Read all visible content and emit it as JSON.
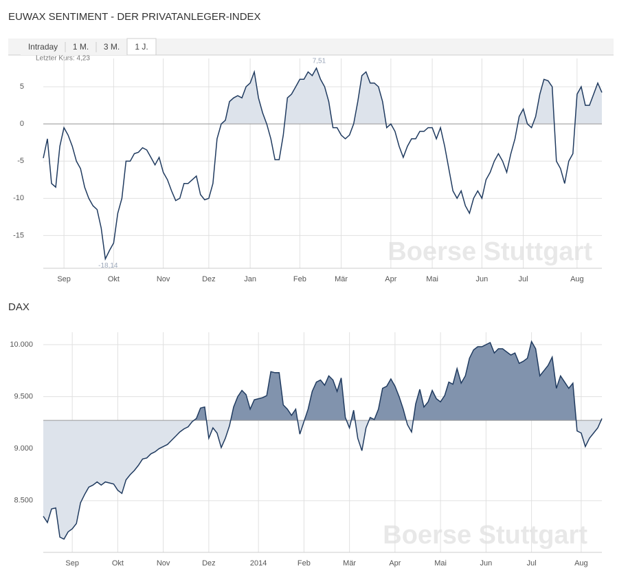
{
  "title": "EUWAX SENTIMENT - DER PRIVATANLEGER-INDEX",
  "tabs": [
    "Intraday",
    "1 M.",
    "3 M.",
    "1 J."
  ],
  "active_tab": 3,
  "chart_data": [
    {
      "type": "line",
      "subtitle": "Letzter Kurs: 4,23",
      "watermark": "Boerse Stuttgart",
      "values": [
        -4.6,
        -2,
        -8,
        -8.5,
        -3,
        -0.5,
        -1.5,
        -3,
        -5,
        -6,
        -8.5,
        -10,
        -11,
        -11.5,
        -14,
        -18.14,
        -17,
        -16,
        -12,
        -10,
        -5,
        -5,
        -4,
        -3.8,
        -3.2,
        -3.5,
        -4.5,
        -5.5,
        -4.5,
        -6.5,
        -7.5,
        -9,
        -10.3,
        -10,
        -8,
        -8,
        -7.5,
        -7,
        -9.5,
        -10.2,
        -10,
        -8,
        -2,
        0,
        0.5,
        3,
        3.5,
        3.8,
        3.5,
        5,
        5.5,
        7,
        3.5,
        1.5,
        0,
        -2,
        -4.8,
        -4.8,
        -1.5,
        3.5,
        4,
        5,
        6,
        6,
        7,
        6.5,
        7.51,
        6,
        5,
        3,
        -0.5,
        -0.5,
        -1.5,
        -2,
        -1.5,
        0,
        3,
        6.5,
        7,
        5.5,
        5.5,
        5,
        3,
        -0.5,
        0,
        -1,
        -3,
        -4.5,
        -3,
        -2,
        -2,
        -1,
        -1,
        -0.5,
        -0.5,
        -2,
        -0.5,
        -3,
        -6,
        -9,
        -10,
        -9,
        -11,
        -12,
        -10,
        -9,
        -10,
        -7.5,
        -6.5,
        -5,
        -4,
        -5,
        -6.5,
        -4,
        -2,
        1,
        2,
        0,
        -0.5,
        1,
        4,
        6,
        5.8,
        5,
        -5,
        -6,
        -8,
        -5,
        -4,
        4,
        5,
        2.5,
        2.5,
        4,
        5.5,
        4.23
      ],
      "color": "#1f3a5f",
      "reference": 0,
      "fill_above": "#dde3eb",
      "xlim": [
        0,
        135
      ],
      "xticks": [
        {
          "value": 5,
          "label": "Sep"
        },
        {
          "value": 17,
          "label": "Okt"
        },
        {
          "value": 29,
          "label": "Nov"
        },
        {
          "value": 40,
          "label": "Dez"
        },
        {
          "value": 50,
          "label": "Jan"
        },
        {
          "value": 62,
          "label": "Feb"
        },
        {
          "value": 72,
          "label": "Mär"
        },
        {
          "value": 84,
          "label": "Apr"
        },
        {
          "value": 94,
          "label": "Mai"
        },
        {
          "value": 106,
          "label": "Jun"
        },
        {
          "value": 116,
          "label": "Jul"
        },
        {
          "value": 129,
          "label": "Aug"
        }
      ],
      "ylim": [
        -19.4,
        8.8
      ],
      "yticks": [
        5,
        0,
        -5,
        -10,
        -15
      ],
      "grid": true,
      "annotations": [
        {
          "label": "7,51",
          "value": 7.51
        },
        {
          "label": "-18,14",
          "value": -18.14
        }
      ]
    },
    {
      "type": "line",
      "title": "DAX",
      "watermark": "Boerse Stuttgart",
      "values": [
        8350,
        8290,
        8420,
        8430,
        8150,
        8130,
        8200,
        8230,
        8280,
        8480,
        8560,
        8630,
        8650,
        8680,
        8650,
        8680,
        8670,
        8660,
        8600,
        8570,
        8700,
        8750,
        8790,
        8840,
        8900,
        8910,
        8950,
        8970,
        9000,
        9020,
        9040,
        9080,
        9120,
        9160,
        9190,
        9210,
        9260,
        9290,
        9390,
        9400,
        9100,
        9200,
        9150,
        9010,
        9100,
        9220,
        9400,
        9500,
        9560,
        9520,
        9380,
        9470,
        9480,
        9490,
        9510,
        9740,
        9730,
        9730,
        9420,
        9380,
        9320,
        9380,
        9140,
        9260,
        9380,
        9550,
        9640,
        9660,
        9610,
        9700,
        9660,
        9550,
        9680,
        9300,
        9200,
        9370,
        9100,
        8980,
        9200,
        9300,
        9280,
        9380,
        9580,
        9600,
        9670,
        9600,
        9500,
        9380,
        9230,
        9160,
        9430,
        9570,
        9400,
        9450,
        9560,
        9480,
        9450,
        9510,
        9640,
        9620,
        9770,
        9630,
        9700,
        9870,
        9950,
        9980,
        9980,
        10000,
        10020,
        9920,
        9960,
        9960,
        9930,
        9900,
        9920,
        9820,
        9840,
        9870,
        10030,
        9960,
        9700,
        9750,
        9800,
        9880,
        9580,
        9700,
        9640,
        9580,
        9630,
        9170,
        9150,
        9020,
        9100,
        9150,
        9200,
        9290
      ],
      "color": "#1f3a5f",
      "reference": 9272,
      "fill_above": "#8193ad",
      "fill_below": "#dde3eb",
      "xlim": [
        0,
        135
      ],
      "xticks": [
        {
          "value": 7,
          "label": "Sep"
        },
        {
          "value": 18,
          "label": "Okt"
        },
        {
          "value": 29,
          "label": "Nov"
        },
        {
          "value": 40,
          "label": "Dez"
        },
        {
          "value": 52,
          "label": "2014"
        },
        {
          "value": 63,
          "label": "Feb"
        },
        {
          "value": 74,
          "label": "Mär"
        },
        {
          "value": 85,
          "label": "Apr"
        },
        {
          "value": 96,
          "label": "Mai"
        },
        {
          "value": 107,
          "label": "Jun"
        },
        {
          "value": 118,
          "label": "Jul"
        },
        {
          "value": 130,
          "label": "Aug"
        }
      ],
      "ylim": [
        8003,
        10119
      ],
      "yticks": [
        {
          "value": 10000,
          "label": "10.000"
        },
        {
          "value": 9500,
          "label": "9.500"
        },
        {
          "value": 9000,
          "label": "9.000"
        },
        {
          "value": 8500,
          "label": "8.500"
        }
      ],
      "grid": true
    }
  ]
}
